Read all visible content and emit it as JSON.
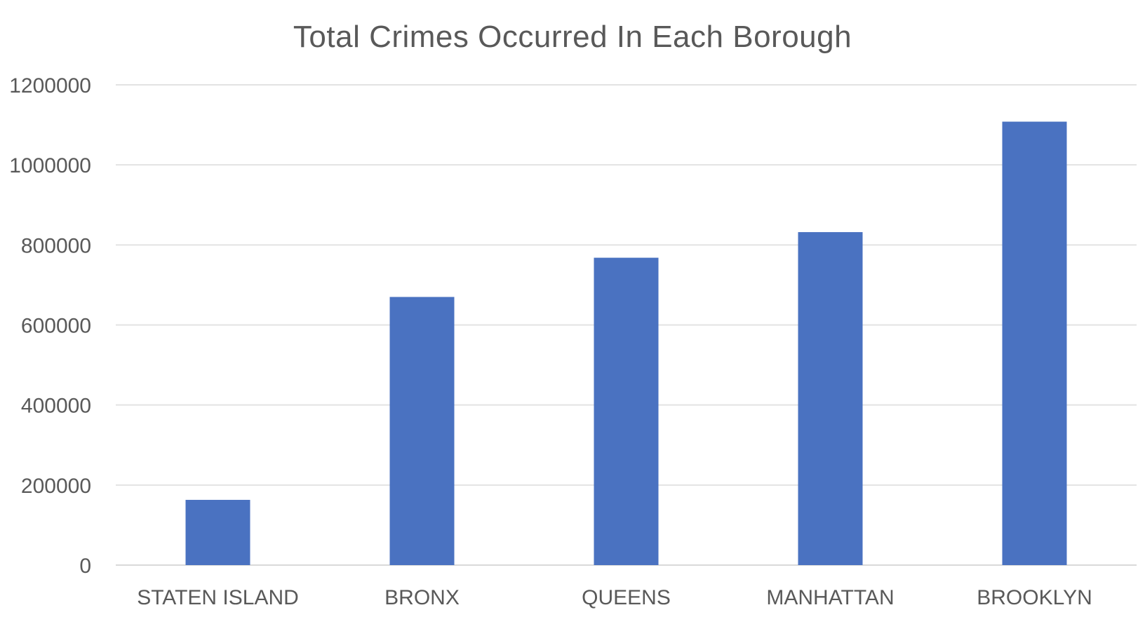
{
  "chart_data": {
    "type": "bar",
    "title": "Total Crimes Occurred In Each Borough",
    "xlabel": "",
    "ylabel": "",
    "categories": [
      "STATEN ISLAND",
      "BRONX",
      "QUEENS",
      "MANHATTAN",
      "BROOKLYN"
    ],
    "values": [
      163000,
      670000,
      768000,
      832000,
      1108000
    ],
    "ylim": [
      0,
      1200000
    ],
    "yticks": [
      "0",
      "200000",
      "400000",
      "600000",
      "800000",
      "1000000",
      "1200000"
    ],
    "grid": true,
    "legend": "none",
    "colors": {
      "bar": "#4a72c1",
      "grid": "#e3e3e3",
      "text": "#595959"
    }
  }
}
